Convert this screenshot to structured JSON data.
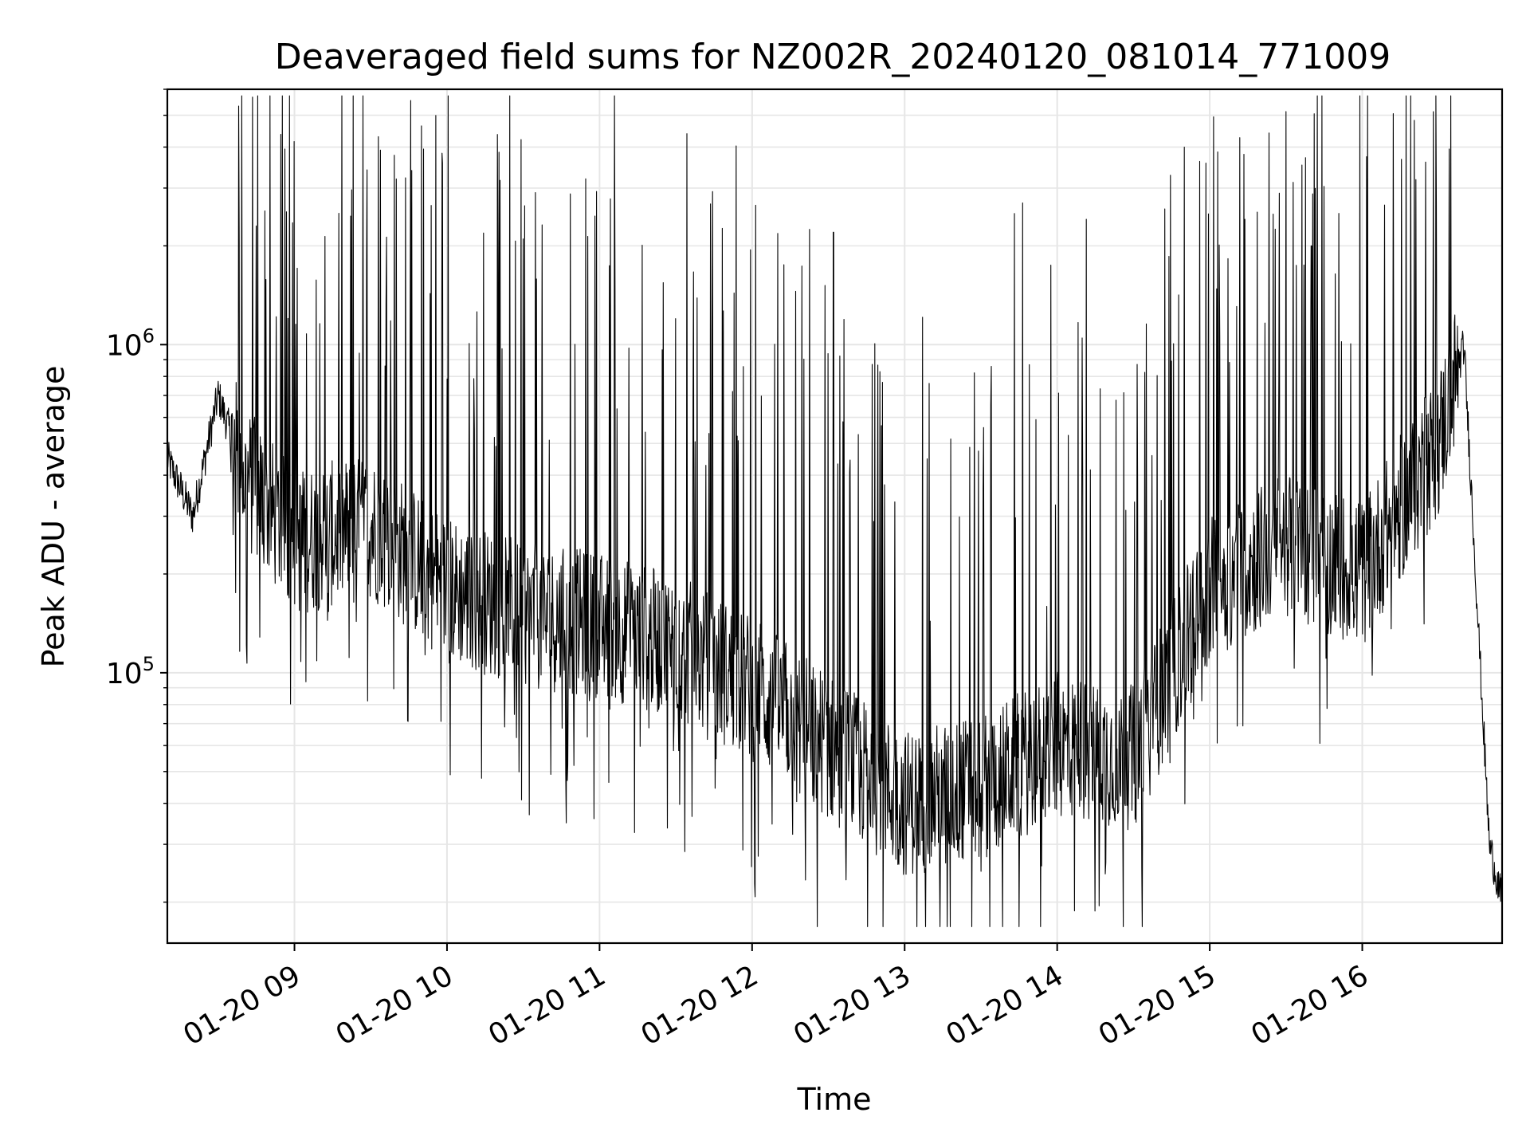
{
  "chart_data": {
    "type": "line",
    "title": "Deaveraged field sums for NZ002R_20240120_081014_771009",
    "xlabel": "Time",
    "ylabel": "Peak ADU - average",
    "y_scale": "log",
    "grid": true,
    "xlim": [
      "01-20 08:10",
      "01-20 16:55"
    ],
    "ylim": [
      15000,
      6000000
    ],
    "x_ticks": [
      "01-20 09",
      "01-20 10",
      "01-20 11",
      "01-20 12",
      "01-20 13",
      "01-20 14",
      "01-20 15",
      "01-20 16"
    ],
    "y_tick_labels": [
      {
        "base": "10",
        "exp": "5",
        "value": 100000
      },
      {
        "base": "10",
        "exp": "6",
        "value": 1000000
      }
    ],
    "line_color": "#000000",
    "series": [
      {
        "x": [
          "01-20 08:10",
          "01-20 08:20",
          "01-20 08:30",
          "01-20 08:40",
          "01-20 09:00",
          "01-20 09:30",
          "01-20 10:00",
          "01-20 10:30",
          "01-20 11:00",
          "01-20 11:30",
          "01-20 12:00",
          "01-20 12:30",
          "01-20 13:00",
          "01-20 13:30",
          "01-20 14:00",
          "01-20 14:30",
          "01-20 15:00",
          "01-20 15:30",
          "01-20 16:00",
          "01-20 16:30",
          "01-20 16:40",
          "01-20 16:50",
          "01-20 16:55"
        ],
        "y": [
          450000,
          300000,
          700000,
          400000,
          250000,
          280000,
          180000,
          150000,
          140000,
          120000,
          90000,
          60000,
          40000,
          45000,
          60000,
          55000,
          180000,
          250000,
          200000,
          500000,
          1000000,
          30000,
          20000
        ]
      }
    ],
    "spikes": [
      {
        "x": "01-20 08:45",
        "y": 2300000
      },
      {
        "x": "01-20 09:40",
        "y": 3200000
      },
      {
        "x": "01-20 10:30",
        "y": 2100000
      },
      {
        "x": "01-20 12:32",
        "y": 2200000
      },
      {
        "x": "01-20 14:50",
        "y": 4000000
      },
      {
        "x": "01-20 15:25",
        "y": 2500000
      },
      {
        "x": "01-20 15:40",
        "y": 2000000
      }
    ]
  }
}
